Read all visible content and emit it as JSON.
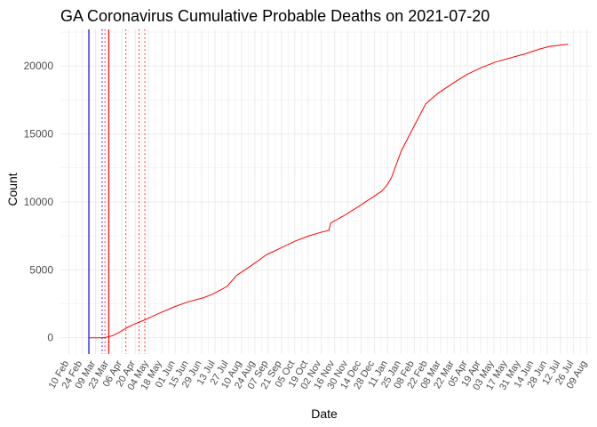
{
  "chart_data": {
    "type": "line",
    "title": "GA Coronavirus Cumulative Probable Deaths on 2021-07-20",
    "xlabel": "Date",
    "ylabel": "Count",
    "x_range": [
      "2020-02-01",
      "2021-08-14"
    ],
    "ylim": [
      -1200,
      22700
    ],
    "y_ticks": [
      0,
      5000,
      10000,
      15000,
      20000
    ],
    "x_tick_labels": [
      "10 Feb",
      "24 Feb",
      "09 Mar",
      "23 Mar",
      "06 Apr",
      "20 Apr",
      "04 May",
      "18 May",
      "01 Jun",
      "15 Jun",
      "29 Jun",
      "13 Jul",
      "27 Jul",
      "10 Aug",
      "24 Aug",
      "07 Sep",
      "21 Sep",
      "05 Oct",
      "19 Oct",
      "02 Nov",
      "16 Nov",
      "30 Nov",
      "14 Dec",
      "28 Dec",
      "11 Jan",
      "25 Jan",
      "08 Feb",
      "22 Feb",
      "08 Mar",
      "22 Mar",
      "05 Apr",
      "19 Apr",
      "03 May",
      "17 May",
      "31 May",
      "14 Jun",
      "28 Jun",
      "12 Jul",
      "26 Jul",
      "09 Aug"
    ],
    "grid": true,
    "series": [
      {
        "color": "#ff0000",
        "x": [
          "2020-03-02",
          "2020-03-16",
          "2020-03-20",
          "2020-03-27",
          "2020-04-03",
          "2020-04-10",
          "2020-04-17",
          "2020-05-01",
          "2020-05-15",
          "2020-06-01",
          "2020-06-15",
          "2020-07-01",
          "2020-07-10",
          "2020-07-25",
          "2020-08-05",
          "2020-08-20",
          "2020-09-05",
          "2020-09-20",
          "2020-10-05",
          "2020-10-20",
          "2020-11-01",
          "2020-11-10",
          "2020-11-12",
          "2020-11-25",
          "2020-12-10",
          "2020-12-25",
          "2021-01-05",
          "2021-01-10",
          "2021-01-15",
          "2021-01-25",
          "2021-02-05",
          "2021-02-20",
          "2021-03-05",
          "2021-03-20",
          "2021-04-05",
          "2021-04-20",
          "2021-05-05",
          "2021-05-20",
          "2021-06-05",
          "2021-06-20",
          "2021-07-01",
          "2021-07-20"
        ],
        "values": [
          0,
          0,
          30,
          150,
          400,
          700,
          950,
          1350,
          1800,
          2300,
          2650,
          2950,
          3200,
          3750,
          4600,
          5300,
          6100,
          6600,
          7100,
          7500,
          7750,
          7900,
          8450,
          8950,
          9600,
          10300,
          10800,
          11200,
          11800,
          13700,
          15200,
          17200,
          18000,
          18700,
          19400,
          19900,
          20300,
          20600,
          20900,
          21250,
          21450,
          21600
        ]
      }
    ],
    "vlines": [
      {
        "date": "2020-03-02",
        "color": "#0000ff",
        "style": "solid"
      },
      {
        "date": "2020-03-16",
        "color": "#0000ff",
        "style": "dotted"
      },
      {
        "date": "2020-03-23",
        "color": "#ff0000",
        "style": "solid"
      },
      {
        "date": "2020-03-19",
        "color": "#ff0000",
        "style": "dotted"
      },
      {
        "date": "2020-04-10",
        "color": "#ff0000",
        "style": "dotted"
      },
      {
        "date": "2020-04-24",
        "color": "#ff0000",
        "style": "dotted"
      },
      {
        "date": "2020-04-30",
        "color": "#ff0000",
        "style": "dotted"
      }
    ]
  }
}
